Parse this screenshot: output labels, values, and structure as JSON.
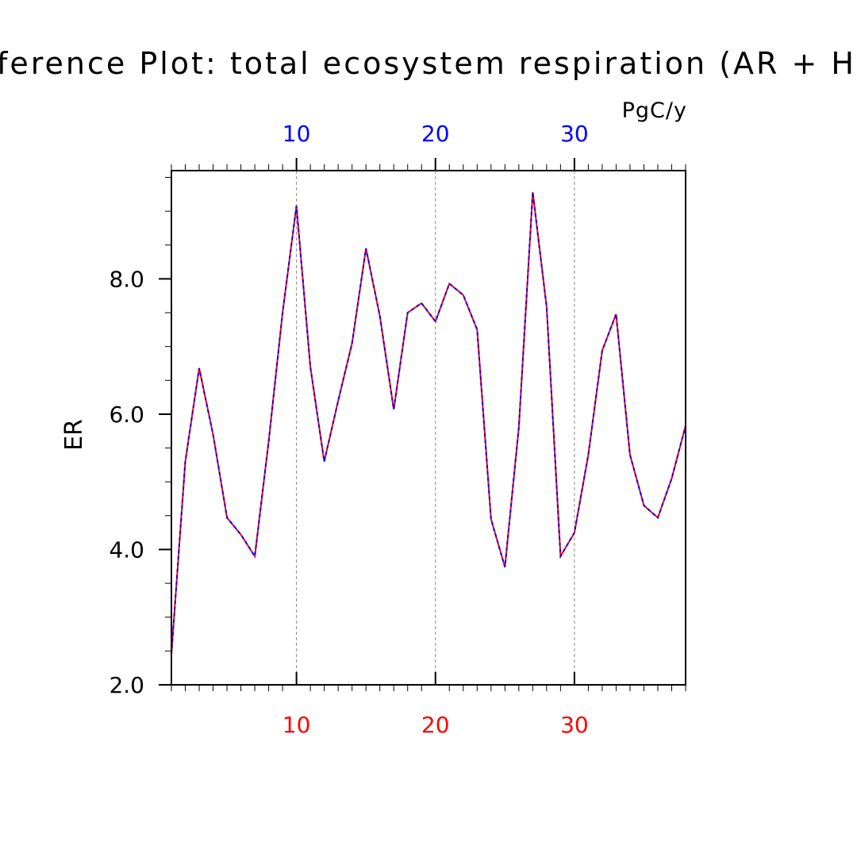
{
  "chart_data": {
    "type": "line",
    "title": "Difference Plot: total ecosystem respiration (AR + HR)",
    "units": "PgC/y",
    "ylabel": "ER",
    "xlim": [
      1,
      38
    ],
    "ylim": [
      2.0,
      9.6
    ],
    "y_ticks": [
      "2.0",
      "4.0",
      "6.0",
      "8.0"
    ],
    "x_ticks": [
      "10",
      "20",
      "30"
    ],
    "grid": "vertical dashed at x-ticks",
    "colors": {
      "bottom_axis": "#ff0000",
      "top_axis": "#0000ff",
      "text": "#000000"
    },
    "series": [
      {
        "color": "#ff0000",
        "style": "solid",
        "x": [
          1,
          2,
          3,
          4,
          5,
          6,
          7,
          8,
          9,
          10,
          11,
          12,
          13,
          14,
          15,
          16,
          17,
          18,
          19,
          20,
          21,
          22,
          23,
          24,
          25,
          26,
          27,
          28,
          29,
          30,
          31,
          32,
          33,
          34,
          35,
          36,
          37,
          38
        ],
        "values": [
          2.45,
          5.3,
          6.68,
          5.7,
          4.47,
          4.22,
          3.9,
          5.6,
          7.5,
          9.08,
          6.7,
          5.3,
          6.2,
          7.05,
          8.45,
          7.45,
          6.07,
          7.5,
          7.64,
          7.37,
          7.93,
          7.76,
          7.25,
          4.45,
          3.74,
          5.8,
          9.28,
          7.58,
          3.9,
          4.25,
          5.4,
          6.94,
          7.48,
          5.4,
          4.65,
          4.47,
          5.05,
          5.83
        ]
      },
      {
        "color": "#0000ff",
        "style": "dashed",
        "x": [
          1,
          2,
          3,
          4,
          5,
          6,
          7,
          8,
          9,
          10,
          11,
          12,
          13,
          14,
          15,
          16,
          17,
          18,
          19,
          20,
          21,
          22,
          23,
          24,
          25,
          26,
          27,
          28,
          29,
          30,
          31,
          32,
          33,
          34,
          35,
          36,
          37,
          38
        ],
        "values": [
          2.45,
          5.3,
          6.68,
          5.7,
          4.47,
          4.22,
          3.9,
          5.6,
          7.5,
          9.08,
          6.7,
          5.3,
          6.2,
          7.05,
          8.45,
          7.45,
          6.07,
          7.5,
          7.64,
          7.37,
          7.93,
          7.76,
          7.25,
          4.45,
          3.74,
          5.8,
          9.28,
          7.58,
          3.9,
          4.25,
          5.4,
          6.94,
          7.48,
          5.4,
          4.65,
          4.47,
          5.05,
          5.83
        ]
      }
    ]
  }
}
